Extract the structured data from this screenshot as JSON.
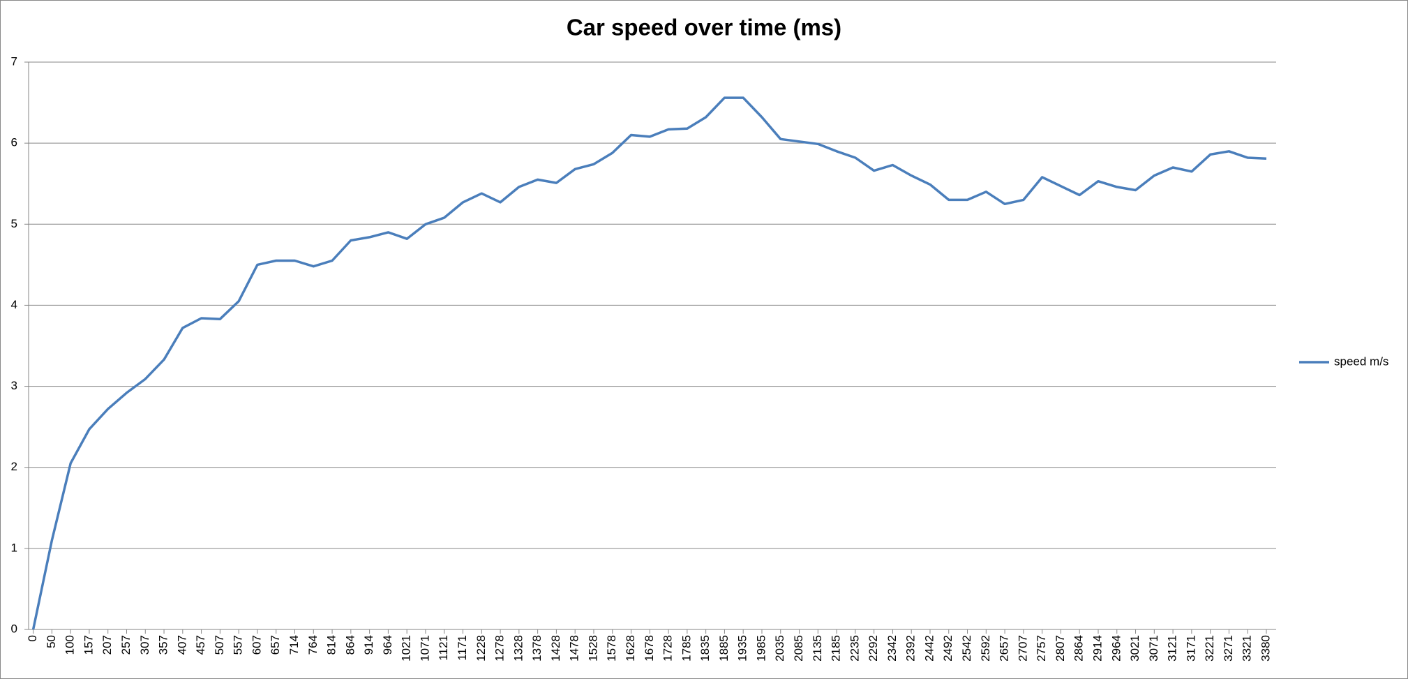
{
  "chart_data": {
    "type": "line",
    "title": "Car speed over time (ms)",
    "categories": [
      "0",
      "50",
      "100",
      "157",
      "207",
      "257",
      "307",
      "357",
      "407",
      "457",
      "507",
      "557",
      "607",
      "657",
      "714",
      "764",
      "814",
      "864",
      "914",
      "964",
      "1021",
      "1071",
      "1121",
      "1171",
      "1228",
      "1278",
      "1328",
      "1378",
      "1428",
      "1478",
      "1528",
      "1578",
      "1628",
      "1678",
      "1728",
      "1785",
      "1835",
      "1885",
      "1935",
      "1985",
      "2035",
      "2085",
      "2135",
      "2185",
      "2235",
      "2292",
      "2342",
      "2392",
      "2442",
      "2492",
      "2542",
      "2592",
      "2657",
      "2707",
      "2757",
      "2807",
      "2864",
      "2914",
      "2964",
      "3021",
      "3071",
      "3121",
      "3171",
      "3221",
      "3271",
      "3321",
      "3380"
    ],
    "series": [
      {
        "name": "speed m/s",
        "color": "#4a7ebb",
        "values": [
          0,
          1.1,
          2.05,
          2.47,
          2.72,
          2.92,
          3.09,
          3.33,
          3.72,
          3.84,
          3.83,
          4.05,
          4.5,
          4.55,
          4.55,
          4.48,
          4.55,
          4.8,
          4.84,
          4.9,
          4.82,
          5.0,
          5.08,
          5.27,
          5.38,
          5.27,
          5.46,
          5.55,
          5.51,
          5.68,
          5.74,
          5.88,
          6.1,
          6.08,
          6.17,
          6.18,
          6.32,
          6.56,
          6.56,
          6.32,
          6.05,
          6.02,
          5.99,
          5.9,
          5.82,
          5.66,
          5.73,
          5.6,
          5.49,
          5.3,
          5.3,
          5.4,
          5.25,
          5.3,
          5.58,
          5.47,
          5.36,
          5.53,
          5.46,
          5.42,
          5.6,
          5.7,
          5.65,
          5.86,
          5.9,
          5.82,
          5.81
        ]
      }
    ],
    "ylim": [
      0,
      7
    ],
    "yticks": [
      0,
      1,
      2,
      3,
      4,
      5,
      6,
      7
    ],
    "grid": true,
    "legend": "right"
  }
}
